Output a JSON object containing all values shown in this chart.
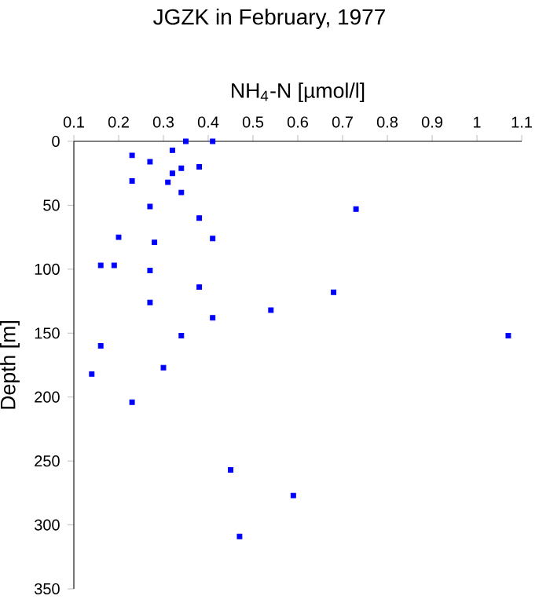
{
  "chart_data": {
    "type": "scatter",
    "title": "JGZK in February, 1977",
    "xlabel": "NH$_{4}$-N [µmol/l]",
    "ylabel": "Depth [m]",
    "xlim": [
      0.1,
      1.1
    ],
    "xticks": [
      0.1,
      0.2,
      0.3,
      0.4,
      0.5,
      0.6,
      0.7,
      0.8,
      0.9,
      1,
      1.1
    ],
    "ylim": [
      350,
      0
    ],
    "yticks": [
      0,
      50,
      100,
      150,
      200,
      250,
      300,
      350
    ],
    "marker": "square",
    "grid": false,
    "series": [
      {
        "color": "#0000ff",
        "x": [
          0.35,
          0.41,
          0.32,
          0.23,
          0.27,
          0.38,
          0.34,
          0.32,
          0.23,
          0.31,
          0.34,
          0.27,
          0.73,
          0.38,
          0.2,
          0.41,
          0.28,
          0.16,
          0.19,
          0.27,
          0.38,
          0.68,
          0.27,
          0.54,
          0.41,
          0.34,
          1.07,
          0.16,
          0.3,
          0.14,
          0.23,
          0.45,
          0.59,
          0.47
        ],
        "values": [
          0,
          0,
          7,
          11,
          16,
          20,
          21,
          25,
          31,
          32,
          40,
          51,
          53,
          60,
          75,
          76,
          79,
          97,
          97,
          101,
          114,
          118,
          126,
          132,
          138,
          152,
          152,
          160,
          177,
          182,
          204,
          257,
          277,
          309
        ]
      }
    ]
  }
}
